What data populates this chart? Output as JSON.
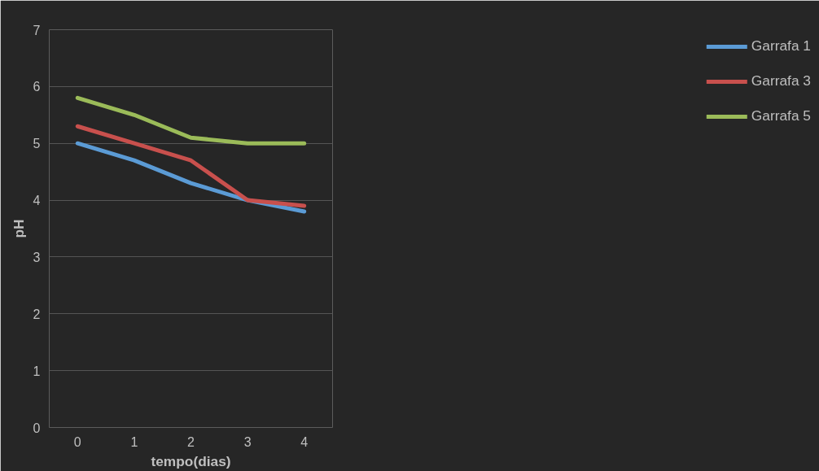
{
  "chart_data": {
    "type": "line",
    "xlabel": "tempo(dias)",
    "ylabel": "pH",
    "categories": [
      "0",
      "1",
      "2",
      "3",
      "4"
    ],
    "series": [
      {
        "name": "Garrafa 1",
        "color": "#5b9bd5",
        "values": [
          5.0,
          4.7,
          4.3,
          4.0,
          3.8
        ]
      },
      {
        "name": "Garrafa 3",
        "color": "#c8504d",
        "values": [
          5.3,
          5.0,
          4.7,
          4.0,
          3.9
        ]
      },
      {
        "name": "Garrafa 5",
        "color": "#9bbb59",
        "values": [
          5.8,
          5.5,
          5.1,
          5.0,
          5.0
        ]
      }
    ],
    "ylim": [
      0,
      7
    ],
    "yticks": [
      0,
      1,
      2,
      3,
      4,
      5,
      6,
      7
    ],
    "grid": "y",
    "legend": "right",
    "marker": "none",
    "line_style": "solid"
  }
}
